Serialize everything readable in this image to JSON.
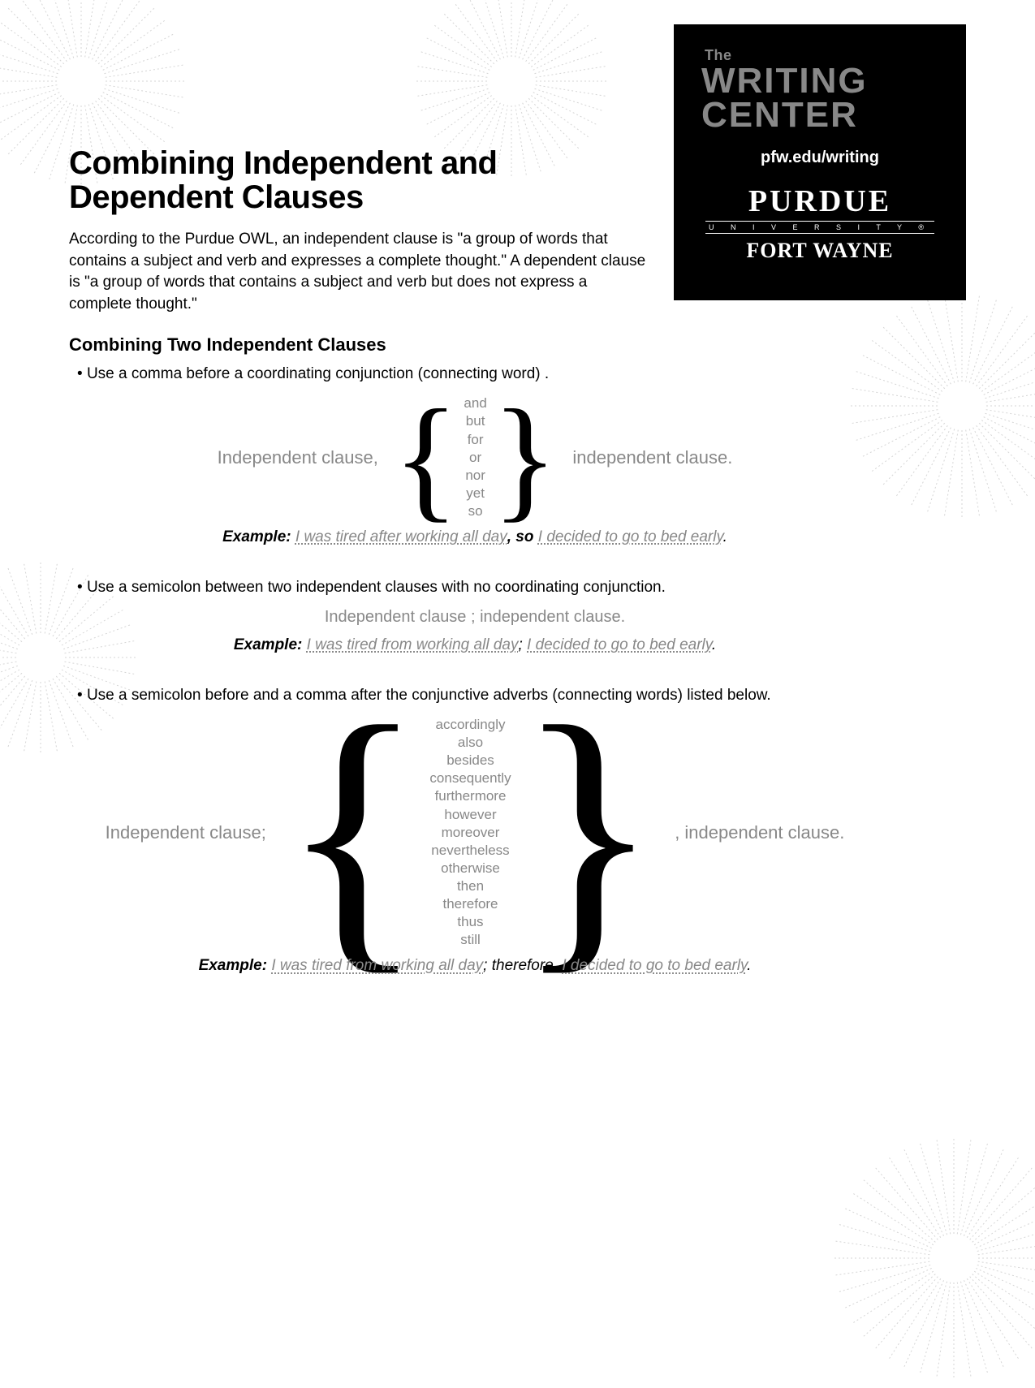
{
  "header": {
    "the": "The",
    "line1": "WRITING",
    "line2": "CENTER",
    "url": "pfw.edu/writing",
    "purdue": "PURDUE",
    "univ": "U N I V E R S I T Y ®",
    "fw": "FORT WAYNE"
  },
  "title": "Combining Independent and Dependent Clauses",
  "intro": "According to the Purdue OWL, an independent clause is \"a group of words that contains a subject and verb and expresses a complete thought.\" A dependent clause is \"a group of words that contains a subject and verb but does not express a complete thought.\"",
  "section1_heading": "Combining Two Independent Clauses",
  "rule1": {
    "text": "Use a comma before a coordinating conjunction (connecting word) .",
    "left": "Independent clause,",
    "right": "independent clause.",
    "conjunctions": [
      "and",
      "but",
      "for",
      "or",
      "nor",
      "yet",
      "so"
    ],
    "example_label": "Example:",
    "example_p1": "I was tired after working all day",
    "example_conj": "so",
    "example_p2": "I decided to go to bed early"
  },
  "rule2": {
    "text": "Use a semicolon between two independent clauses with no coordinating conjunction.",
    "pattern": "Independent clause  ;  independent clause.",
    "example_label": "Example:",
    "example_p1": "I was tired from working all day",
    "example_p2": "I decided to go to bed early"
  },
  "rule3": {
    "text": "Use a semicolon before and a comma after the conjunctive adverbs (connecting words) listed below.",
    "left": "Independent clause;",
    "right": ", independent clause.",
    "adverbs": [
      "accordingly",
      "also",
      "besides",
      "consequently",
      "furthermore",
      "however",
      "moreover",
      "nevertheless",
      "otherwise",
      "then",
      "therefore",
      "thus",
      "still"
    ],
    "example_label": "Example:",
    "example_p1": "I was tired from working all day",
    "example_adv": "therefore,",
    "example_p2": "I decided to go to bed early"
  },
  "colors": {
    "background": "#ffffff",
    "text": "#000000",
    "muted": "#888888",
    "header_bg": "#000000"
  }
}
